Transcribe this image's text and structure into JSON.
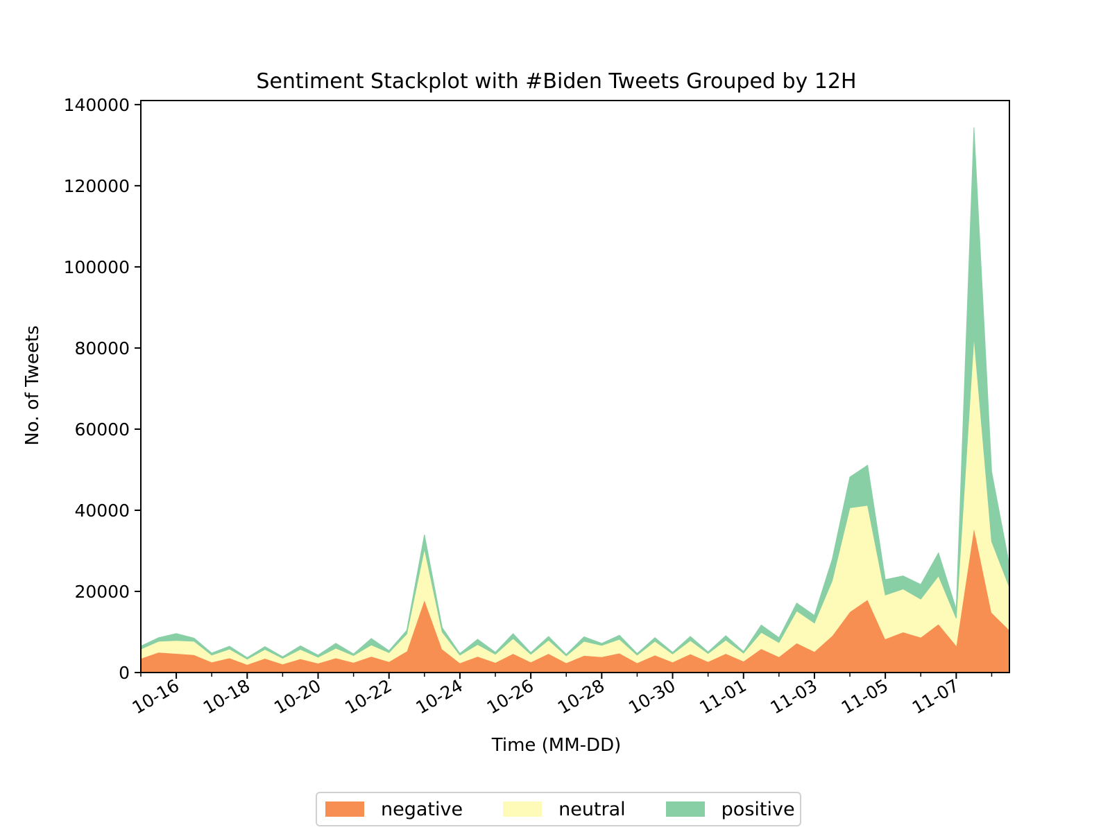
{
  "chart_data": {
    "type": "area",
    "stacked": true,
    "title": "Sentiment Stackplot with #Biden Tweets Grouped by 12H",
    "xlabel": "Time (MM-DD)",
    "ylabel": "No. of Tweets",
    "ylim": [
      0,
      141000
    ],
    "yticks": [
      0,
      20000,
      40000,
      60000,
      80000,
      100000,
      120000,
      140000
    ],
    "ytick_labels": [
      "0",
      "20000",
      "40000",
      "60000",
      "80000",
      "100000",
      "120000",
      "140000"
    ],
    "xtick_labels": [
      "10-16",
      "10-18",
      "10-20",
      "10-22",
      "10-24",
      "10-26",
      "10-28",
      "10-30",
      "11-01",
      "11-03",
      "11-05",
      "11-07"
    ],
    "xtick_dates": [
      "2020-10-16",
      "2020-10-18",
      "2020-10-20",
      "2020-10-22",
      "2020-10-24",
      "2020-10-26",
      "2020-10-28",
      "2020-10-30",
      "2020-11-01",
      "2020-11-03",
      "2020-11-05",
      "2020-11-07"
    ],
    "x": [
      "2020-10-15 00:00",
      "2020-10-15 12:00",
      "2020-10-16 00:00",
      "2020-10-16 12:00",
      "2020-10-17 00:00",
      "2020-10-17 12:00",
      "2020-10-18 00:00",
      "2020-10-18 12:00",
      "2020-10-19 00:00",
      "2020-10-19 12:00",
      "2020-10-20 00:00",
      "2020-10-20 12:00",
      "2020-10-21 00:00",
      "2020-10-21 12:00",
      "2020-10-22 00:00",
      "2020-10-22 12:00",
      "2020-10-23 00:00",
      "2020-10-23 12:00",
      "2020-10-24 00:00",
      "2020-10-24 12:00",
      "2020-10-25 00:00",
      "2020-10-25 12:00",
      "2020-10-26 00:00",
      "2020-10-26 12:00",
      "2020-10-27 00:00",
      "2020-10-27 12:00",
      "2020-10-28 00:00",
      "2020-10-28 12:00",
      "2020-10-29 00:00",
      "2020-10-29 12:00",
      "2020-10-30 00:00",
      "2020-10-30 12:00",
      "2020-10-31 00:00",
      "2020-10-31 12:00",
      "2020-11-01 00:00",
      "2020-11-01 12:00",
      "2020-11-02 00:00",
      "2020-11-02 12:00",
      "2020-11-03 00:00",
      "2020-11-03 12:00",
      "2020-11-04 00:00",
      "2020-11-04 12:00",
      "2020-11-05 00:00",
      "2020-11-05 12:00",
      "2020-11-06 00:00",
      "2020-11-06 12:00",
      "2020-11-07 00:00",
      "2020-11-07 12:00",
      "2020-11-08 00:00",
      "2020-11-08 12:00"
    ],
    "series": [
      {
        "name": "negative",
        "color": "#f88f52",
        "values": [
          3500,
          5000,
          4700,
          4400,
          2600,
          3600,
          2000,
          3500,
          2100,
          3400,
          2300,
          3600,
          2500,
          4000,
          2700,
          5300,
          18000,
          5800,
          2400,
          4000,
          2500,
          4700,
          2600,
          4700,
          2400,
          4200,
          3900,
          4800,
          2400,
          4300,
          2600,
          4600,
          2700,
          4700,
          2800,
          5900,
          3900,
          7300,
          5200,
          9100,
          15000,
          18000,
          8300,
          10000,
          8700,
          12000,
          6700,
          35800,
          14800,
          10500
        ]
      },
      {
        "name": "neutral",
        "color": "#fefbb8",
        "values": [
          2300,
          2700,
          3200,
          3300,
          1700,
          2200,
          1300,
          2200,
          1400,
          2300,
          1500,
          2400,
          1700,
          2800,
          2200,
          4200,
          12500,
          4200,
          1900,
          2900,
          2000,
          3700,
          1900,
          3300,
          1700,
          3500,
          2800,
          3400,
          1900,
          3400,
          2000,
          3300,
          2000,
          3300,
          2000,
          4000,
          3500,
          7900,
          7000,
          13500,
          25600,
          23200,
          10800,
          10600,
          9400,
          11800,
          6700,
          47000,
          17500,
          10500
        ]
      },
      {
        "name": "positive",
        "color": "#89cfa5",
        "values": [
          700,
          900,
          1700,
          800,
          500,
          700,
          400,
          700,
          400,
          900,
          500,
          1200,
          400,
          1600,
          500,
          900,
          3500,
          1100,
          400,
          1300,
          500,
          1200,
          400,
          900,
          400,
          1100,
          500,
          1000,
          400,
          900,
          400,
          1000,
          400,
          1100,
          400,
          1800,
          1200,
          1900,
          1900,
          5300,
          7600,
          9900,
          3800,
          3200,
          3600,
          5700,
          2200,
          51600,
          17200,
          5500
        ]
      }
    ],
    "legend_position": "bottom-center",
    "grid": false
  },
  "legend": {
    "items": [
      {
        "label": "negative",
        "color": "#f88f52"
      },
      {
        "label": "neutral",
        "color": "#fefbb8"
      },
      {
        "label": "positive",
        "color": "#89cfa5"
      }
    ]
  }
}
